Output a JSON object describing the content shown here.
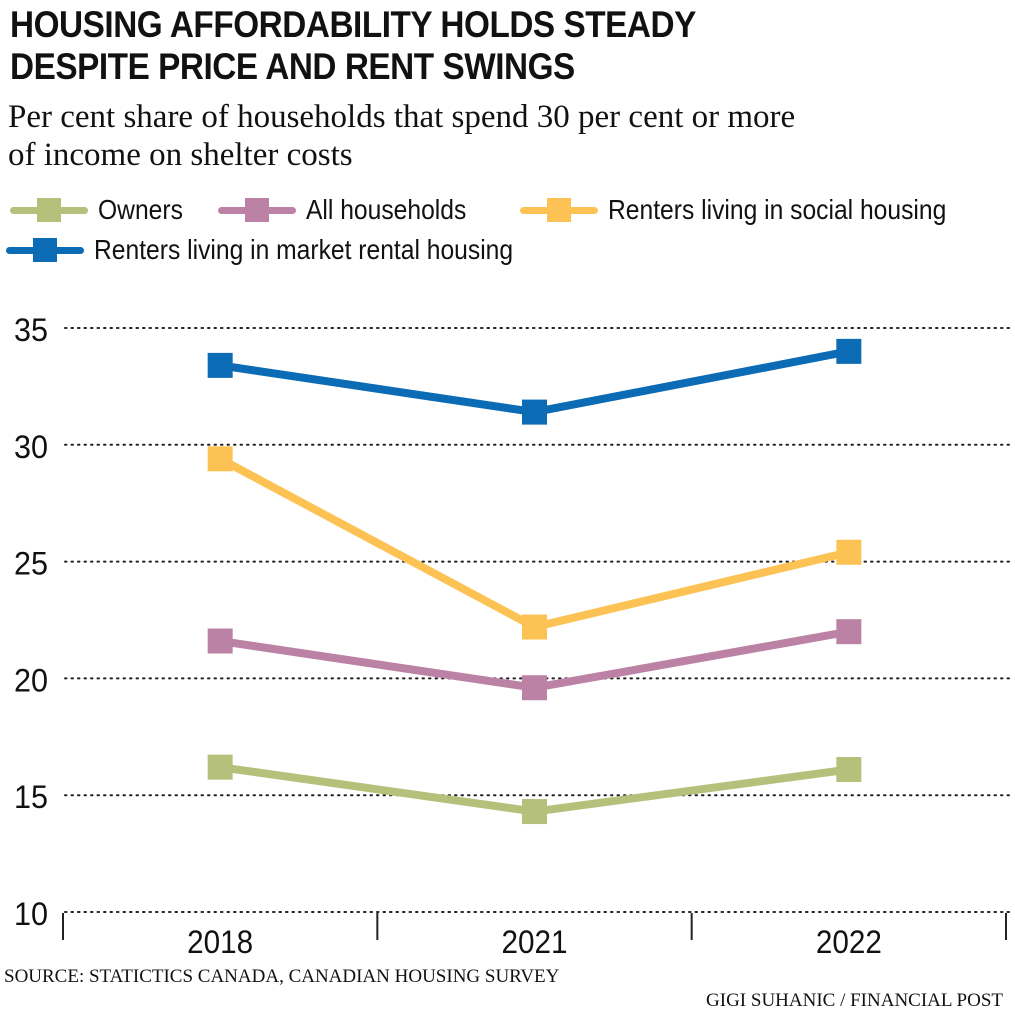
{
  "chart_data": {
    "type": "line",
    "title": "HOUSING AFFORDABILITY HOLDS STEADY DESPITE PRICE AND RENT SWINGS",
    "title_lines": [
      "HOUSING AFFORDABILITY HOLDS STEADY",
      "DESPITE PRICE AND RENT SWINGS"
    ],
    "subtitle": "Per cent share of households that spend 30 per cent or more of income on shelter costs",
    "subtitle_lines": [
      "Per cent share of households that spend 30 per cent or more",
      "of income on shelter costs"
    ],
    "xlabel": "",
    "ylabel": "",
    "categories": [
      "2018",
      "2021",
      "2022"
    ],
    "ylim": [
      10,
      35
    ],
    "yticks": [
      10,
      15,
      20,
      25,
      30,
      35
    ],
    "ytick_labels": [
      "10",
      "15",
      "20",
      "25",
      "30",
      "35"
    ],
    "grid": "horizontal-dotted",
    "legend_position": "top-left",
    "series": [
      {
        "name": "Owners",
        "color": "#b5c07a",
        "values": [
          16.2,
          14.3,
          16.1
        ]
      },
      {
        "name": "All households",
        "color": "#bb82a5",
        "values": [
          21.6,
          19.6,
          22.0
        ]
      },
      {
        "name": "Renters living in social housing",
        "color": "#fdc254",
        "values": [
          29.4,
          22.2,
          25.4
        ]
      },
      {
        "name": "Renters living in market rental housing",
        "color": "#0c6bb5",
        "values": [
          33.4,
          31.4,
          34.0
        ]
      }
    ],
    "source": "SOURCE: STATICTICS CANADA, CANADIAN HOUSING SURVEY",
    "credit": "GIGI SUHANIC / FINANCIAL POST"
  }
}
